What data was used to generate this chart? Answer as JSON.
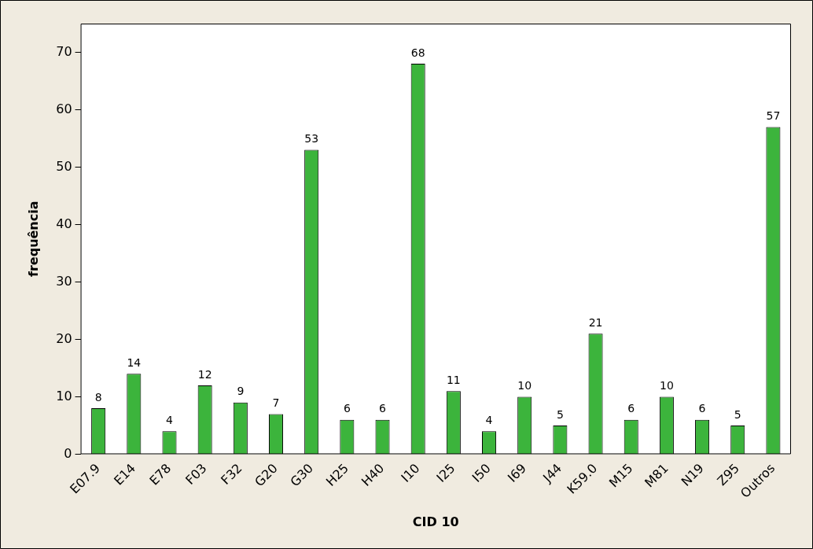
{
  "chart_data": {
    "type": "bar",
    "xlabel": "CID 10",
    "ylabel": "frequência",
    "categories": [
      "E07.9",
      "E14",
      "E78",
      "F03",
      "F32",
      "G20",
      "G30",
      "H25",
      "H40",
      "I10",
      "I25",
      "I50",
      "I69",
      "J44",
      "K59.0",
      "M15",
      "M81",
      "N19",
      "Z95",
      "Outros"
    ],
    "values": [
      8,
      14,
      4,
      12,
      9,
      7,
      53,
      6,
      6,
      68,
      11,
      4,
      10,
      5,
      21,
      6,
      10,
      6,
      5,
      57
    ],
    "color": "#3cb43c",
    "ylim": [
      0,
      75
    ],
    "yticks": [
      0,
      10,
      20,
      30,
      40,
      50,
      60,
      70
    ],
    "grid": false,
    "legend": false,
    "data_labels": true
  }
}
